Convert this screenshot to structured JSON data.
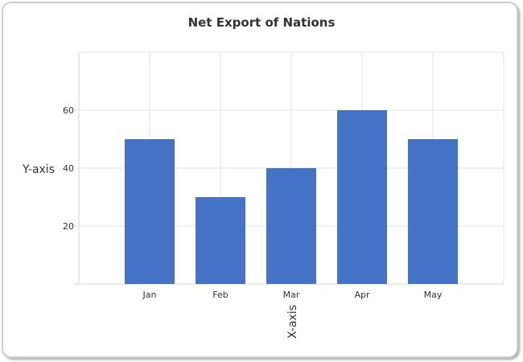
{
  "chart_data": {
    "type": "bar",
    "title": "Net Export of Nations",
    "xlabel": "X-axis",
    "ylabel": "Y-axis",
    "categories": [
      "Jan",
      "Feb",
      "Mar",
      "Apr",
      "May"
    ],
    "values": [
      50,
      30,
      40,
      60,
      50
    ],
    "ylim": [
      0,
      80
    ],
    "yticks": [
      20,
      40,
      60
    ],
    "grid": true,
    "legend": "none",
    "bar_color": "#4472c4",
    "grid_color": "#e3e3e3"
  }
}
